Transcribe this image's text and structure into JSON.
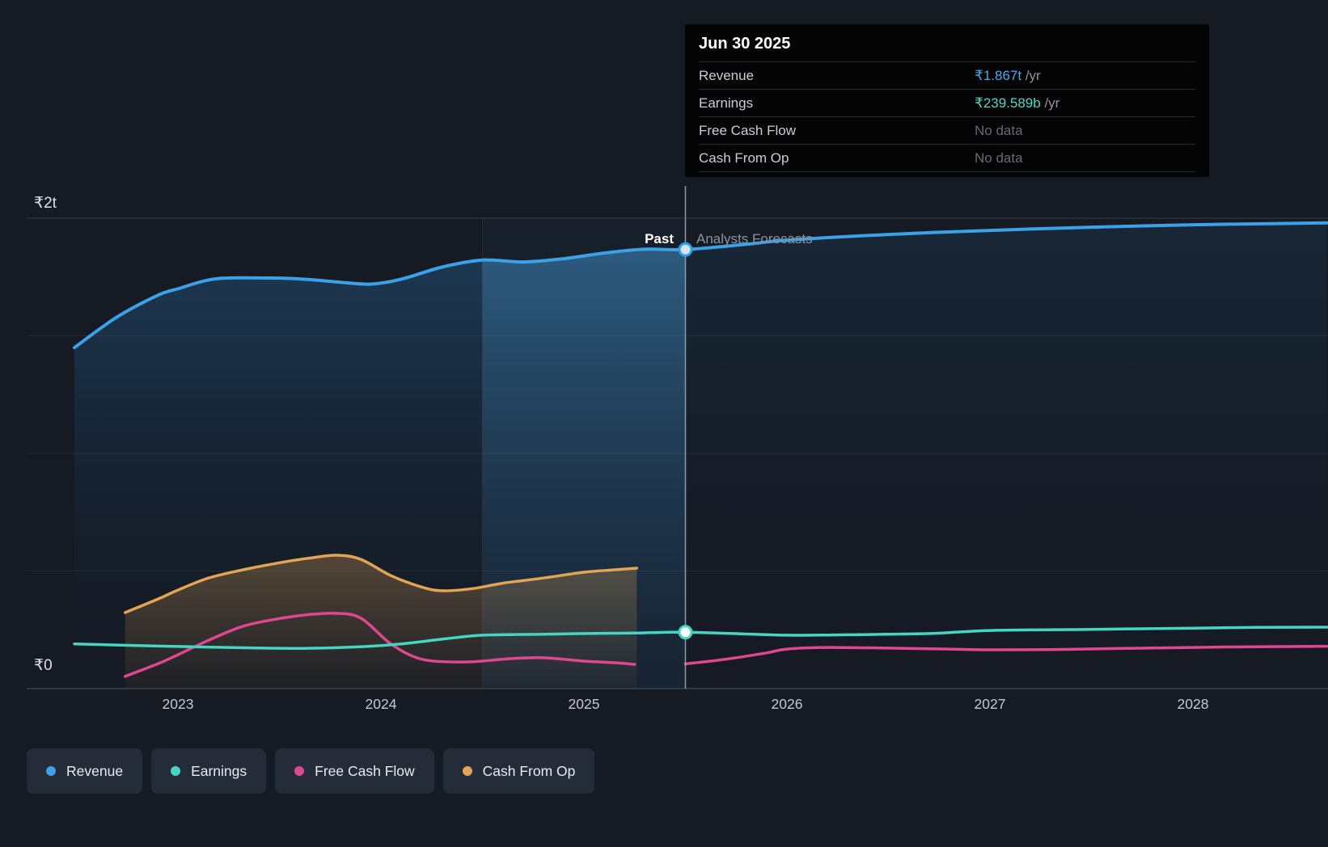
{
  "tooltip": {
    "title": "Jun 30 2025",
    "rows": [
      {
        "label": "Revenue",
        "value": "₹1.867t",
        "suffix": " /yr",
        "value_color": "#4aa8ea"
      },
      {
        "label": "Earnings",
        "value": "₹239.589b",
        "suffix": " /yr",
        "value_color": "#4fd8c4"
      },
      {
        "label": "Free Cash Flow",
        "value": "No data",
        "suffix": "",
        "value_color": "#646b76"
      },
      {
        "label": "Cash From Op",
        "value": "No data",
        "suffix": "",
        "value_color": "#646b76"
      }
    ]
  },
  "labels": {
    "past": "Past",
    "forecast": "Analysts Forecasts"
  },
  "legend": {
    "items": [
      {
        "label": "Revenue",
        "color": "#3ba1e8"
      },
      {
        "label": "Earnings",
        "color": "#45d5c2"
      },
      {
        "label": "Free Cash Flow",
        "color": "#df4791"
      },
      {
        "label": "Cash From Op",
        "color": "#e3a455"
      }
    ]
  },
  "chart_data": {
    "type": "line",
    "title": "Earnings and Revenue Growth Forecast",
    "unit": "INR billions",
    "ylim": [
      0,
      2000
    ],
    "xlim": [
      2022.25,
      2028.66
    ],
    "grid": true,
    "past_boundary": 2025.5,
    "highlight_band": [
      2024.5,
      2025.5
    ],
    "x_ticks": [
      "2023",
      "2024",
      "2025",
      "2026",
      "2027",
      "2028"
    ],
    "x_tick_years": [
      2023,
      2024,
      2025,
      2026,
      2027,
      2028
    ],
    "y_ticks": [
      {
        "label": "₹2t",
        "value": 2000
      },
      {
        "label": "₹0",
        "value": 0
      }
    ],
    "series": [
      {
        "name": "Revenue",
        "color": "#3ba1e8",
        "region": "past+forecast",
        "x": [
          2022.49,
          2022.7,
          2022.9,
          2023.0,
          2023.18,
          2023.4,
          2023.6,
          2023.8,
          2023.95,
          2024.1,
          2024.3,
          2024.5,
          2024.7,
          2024.9,
          2025.1,
          2025.3,
          2025.5,
          2025.8,
          2026.0,
          2026.5,
          2027.0,
          2027.5,
          2028.0,
          2028.3,
          2028.66
        ],
        "values": [
          1450,
          1580,
          1672,
          1700,
          1742,
          1746,
          1742,
          1728,
          1720,
          1741,
          1792,
          1822,
          1814,
          1828,
          1852,
          1868,
          1867,
          1889,
          1907,
          1931,
          1948,
          1962,
          1972,
          1976,
          1980
        ]
      },
      {
        "name": "Earnings",
        "color": "#45d5c2",
        "region": "past+forecast",
        "x": [
          2022.49,
          2022.8,
          2023.0,
          2023.3,
          2023.6,
          2023.9,
          2024.1,
          2024.3,
          2024.5,
          2024.8,
          2025.0,
          2025.25,
          2025.5,
          2025.8,
          2026.0,
          2026.3,
          2026.7,
          2027.0,
          2027.5,
          2028.0,
          2028.3,
          2028.66
        ],
        "values": [
          190,
          183,
          179,
          174,
          171,
          178,
          190,
          210,
          227,
          231,
          234,
          236,
          240,
          232,
          227,
          229,
          234,
          247,
          252,
          257,
          260,
          261
        ]
      },
      {
        "name": "Free Cash Flow",
        "color": "#df4791",
        "region": "past",
        "x": [
          2022.74,
          2022.9,
          2023.0,
          2023.15,
          2023.32,
          2023.5,
          2023.65,
          2023.78,
          2023.9,
          2024.04,
          2024.15,
          2024.25,
          2024.4,
          2024.5,
          2024.65,
          2024.8,
          2025.0,
          2025.15,
          2025.25
        ],
        "values": [
          52,
          105,
          144,
          205,
          265,
          298,
          315,
          320,
          300,
          196,
          140,
          118,
          113,
          117,
          128,
          131,
          117,
          110,
          103
        ]
      },
      {
        "name": "Free Cash Flow (forecast)",
        "color": "#df4791",
        "region": "forecast",
        "x": [
          2025.5,
          2025.7,
          2025.9,
          2026.0,
          2026.2,
          2026.5,
          2026.8,
          2027.0,
          2027.3,
          2027.6,
          2028.0,
          2028.3,
          2028.66
        ],
        "values": [
          105,
          125,
          152,
          168,
          175,
          172,
          168,
          165,
          166,
          170,
          175,
          178,
          180
        ]
      },
      {
        "name": "Cash From Op",
        "color": "#e3a455",
        "region": "past",
        "x": [
          2022.74,
          2022.9,
          2023.0,
          2023.15,
          2023.32,
          2023.5,
          2023.65,
          2023.78,
          2023.9,
          2024.05,
          2024.2,
          2024.3,
          2024.45,
          2024.6,
          2024.8,
          2025.0,
          2025.15,
          2025.26
        ],
        "values": [
          323,
          380,
          419,
          470,
          505,
          535,
          555,
          567,
          550,
          480,
          432,
          416,
          425,
          448,
          470,
          495,
          505,
          512
        ]
      }
    ],
    "markers": [
      {
        "series": "Revenue",
        "x": 2025.5,
        "value": 1867,
        "fill": "#cfe7f7",
        "stroke": "#2f9de4"
      },
      {
        "series": "Earnings",
        "x": 2025.5,
        "value": 240,
        "fill": "#ffffff",
        "stroke": "#45d5c2"
      }
    ]
  }
}
